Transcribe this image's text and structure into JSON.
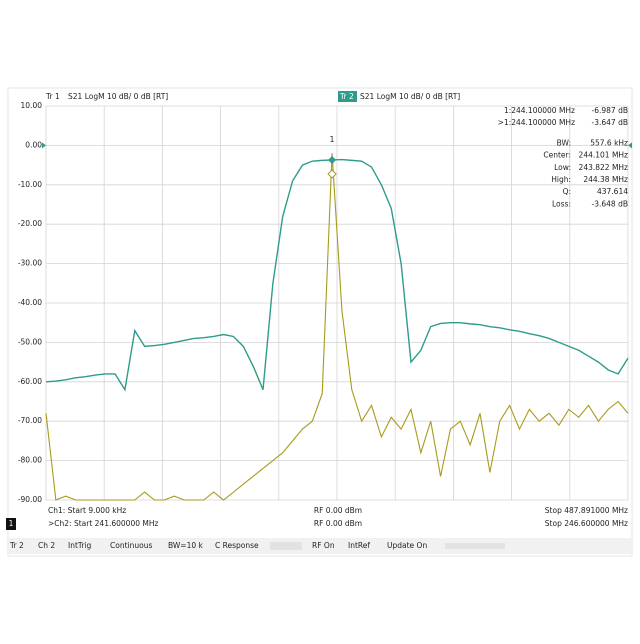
{
  "chart_data": {
    "type": "line",
    "series": [
      {
        "name": "Tr 1",
        "color": "#2e9c8c",
        "values": [
          -60,
          -59.8,
          -59.5,
          -59,
          -58.7,
          -58.3,
          -58,
          -58,
          -62,
          -47,
          -51,
          -50.8,
          -50.5,
          -50,
          -49.5,
          -49,
          -48.8,
          -48.5,
          -48,
          -48.5,
          -51,
          -56,
          -62,
          -35,
          -18,
          -9,
          -5,
          -4,
          -3.8,
          -3.7,
          -3.6,
          -3.8,
          -4,
          -5.5,
          -10,
          -16,
          -30,
          -55,
          -52,
          -46,
          -45.2,
          -45,
          -45,
          -45.3,
          -45.5,
          -46,
          -46.3,
          -46.8,
          -47.2,
          -47.8,
          -48.3,
          -49,
          -50,
          -51,
          -52,
          -53.5,
          -55,
          -57,
          -58,
          -54
        ]
      },
      {
        "name": "Tr 2",
        "color": "#a89a1c",
        "values": [
          -68,
          -90,
          -89,
          -90,
          -90,
          -90,
          -90,
          -90,
          -90,
          -90,
          -88,
          -90,
          -90,
          -89,
          -90,
          -90,
          -90,
          -88,
          -90,
          -88,
          -86,
          -84,
          -82,
          -80,
          -78,
          -75,
          -72,
          -70,
          -63,
          -2,
          -42,
          -62,
          -70,
          -66,
          -74,
          -69,
          -72,
          -67,
          -78,
          -70,
          -84,
          -72,
          -70,
          -76,
          -68,
          -83,
          -70,
          -66,
          -72,
          -67,
          -70,
          -68,
          -71,
          -67,
          -69,
          -66,
          -70,
          -67,
          -65,
          -68
        ]
      }
    ],
    "measurements": [
      "S21 LogM 10 dB/ 0 dB [RT]",
      "S21 LogM 10 dB/ 0 dB [RT]"
    ],
    "ylim": [
      -90,
      10
    ],
    "yticks": [
      {
        "value": 10,
        "label": "10.00"
      },
      {
        "value": 0,
        "label": "0.00"
      },
      {
        "value": -10,
        "label": "-10.00"
      },
      {
        "value": -20,
        "label": "-20.00"
      },
      {
        "value": -30,
        "label": "-30.00"
      },
      {
        "value": -40,
        "label": "-40.00"
      },
      {
        "value": -50,
        "label": "-50.00"
      },
      {
        "value": -60,
        "label": "-60.00"
      },
      {
        "value": -70,
        "label": "-70.00"
      },
      {
        "value": -80,
        "label": "-80.00"
      },
      {
        "value": -90,
        "label": "-90.00"
      }
    ],
    "grid": true,
    "marker_label": "1",
    "readouts": [
      [
        "1:244.100000 MHz",
        "-6.987 dB"
      ],
      [
        ">1:244.100000 MHz",
        "-3.647 dB"
      ],
      [
        "BW:",
        "557.6 kHz"
      ],
      [
        "Center:",
        "244.101 MHz"
      ],
      [
        "Low:",
        "243.822 MHz"
      ],
      [
        "High:",
        "244.38 MHz"
      ],
      [
        "Q:",
        "437.614"
      ],
      [
        "Loss:",
        "-3.648 dB"
      ]
    ]
  },
  "status": [
    [
      "Ch1: Start 9.000 kHz",
      "RF 0.00 dBm",
      "Stop 487.891000 MHz"
    ],
    [
      ">Ch2: Start 241.600000 MHz",
      "RF 0.00 dBm",
      "Stop 246.600000 MHz"
    ]
  ],
  "channel_badge": "1",
  "toolbar": [
    "Tr 2",
    "Ch 2",
    "IntTrig",
    "Continuous",
    "BW=10 k",
    "C Response",
    "RF On",
    "IntRef",
    "Update On"
  ]
}
